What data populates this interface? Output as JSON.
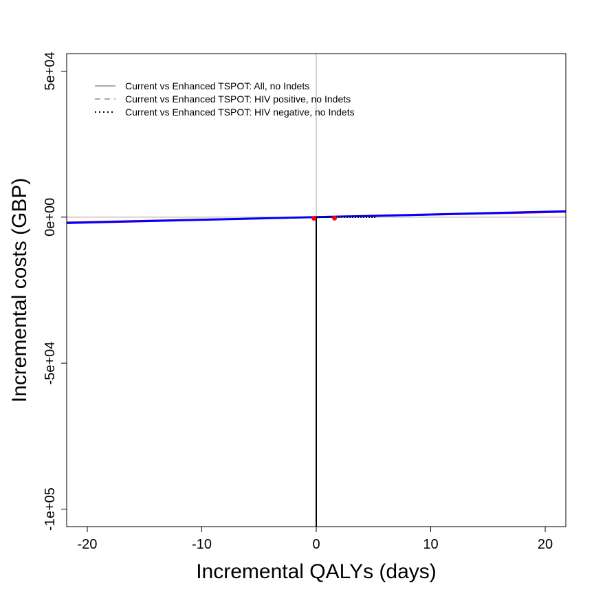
{
  "chart_data": {
    "type": "scatter",
    "title": "",
    "xlabel": "Incremental QALYs (days)",
    "ylabel": "Incremental costs (GBP)",
    "xlim": [
      -21.8,
      21.8
    ],
    "ylim": [
      -106000,
      56000
    ],
    "x_ticks": [
      {
        "value": -20,
        "label": "-20"
      },
      {
        "value": -10,
        "label": "-10"
      },
      {
        "value": 0,
        "label": "0"
      },
      {
        "value": 10,
        "label": "10"
      },
      {
        "value": 20,
        "label": "20"
      }
    ],
    "y_ticks": [
      {
        "value": 50000,
        "label": "5e+04"
      },
      {
        "value": 0,
        "label": "0e+00"
      },
      {
        "value": -50000,
        "label": "-5e+04"
      },
      {
        "value": -100000,
        "label": "-1e+05"
      }
    ],
    "reference_lines": [
      {
        "orientation": "vertical",
        "value": 0,
        "color": "#aaaaaa"
      },
      {
        "orientation": "horizontal",
        "value": 0,
        "color": "#aaaaaa"
      }
    ],
    "series": [
      {
        "name": "Current vs Enhanced TSPOT: All, no Indets",
        "color": "#aaaaaa",
        "dash": "solid"
      },
      {
        "name": "Current vs Enhanced TSPOT: HIV positive, no Indets",
        "color": "#aaaaaa",
        "dash": "dashed"
      },
      {
        "name": "Current vs Enhanced TSPOT: HIV negative, no Indets",
        "color": "#000000",
        "dash": "dotted"
      }
    ],
    "threshold_lines": [
      {
        "color": "#ff0000",
        "points": [
          [
            -21.8,
            -1800
          ],
          [
            21.8,
            1800
          ]
        ]
      },
      {
        "color": "#0000ff",
        "points": [
          [
            -21.8,
            -2000
          ],
          [
            21.8,
            2000
          ]
        ]
      }
    ],
    "segments": [
      {
        "color": "#000000",
        "style": "solid",
        "points": [
          [
            0,
            0
          ],
          [
            0,
            -106000
          ]
        ]
      },
      {
        "color": "#000000",
        "style": "dotted",
        "points": [
          [
            0,
            0
          ],
          [
            5.3,
            0
          ]
        ]
      }
    ],
    "points": [
      {
        "x": -0.2,
        "y": -400,
        "color": "#ff0000"
      },
      {
        "x": 1.6,
        "y": -350,
        "color": "#ff0000"
      }
    ],
    "legend_position": "top-left",
    "grid": false
  }
}
